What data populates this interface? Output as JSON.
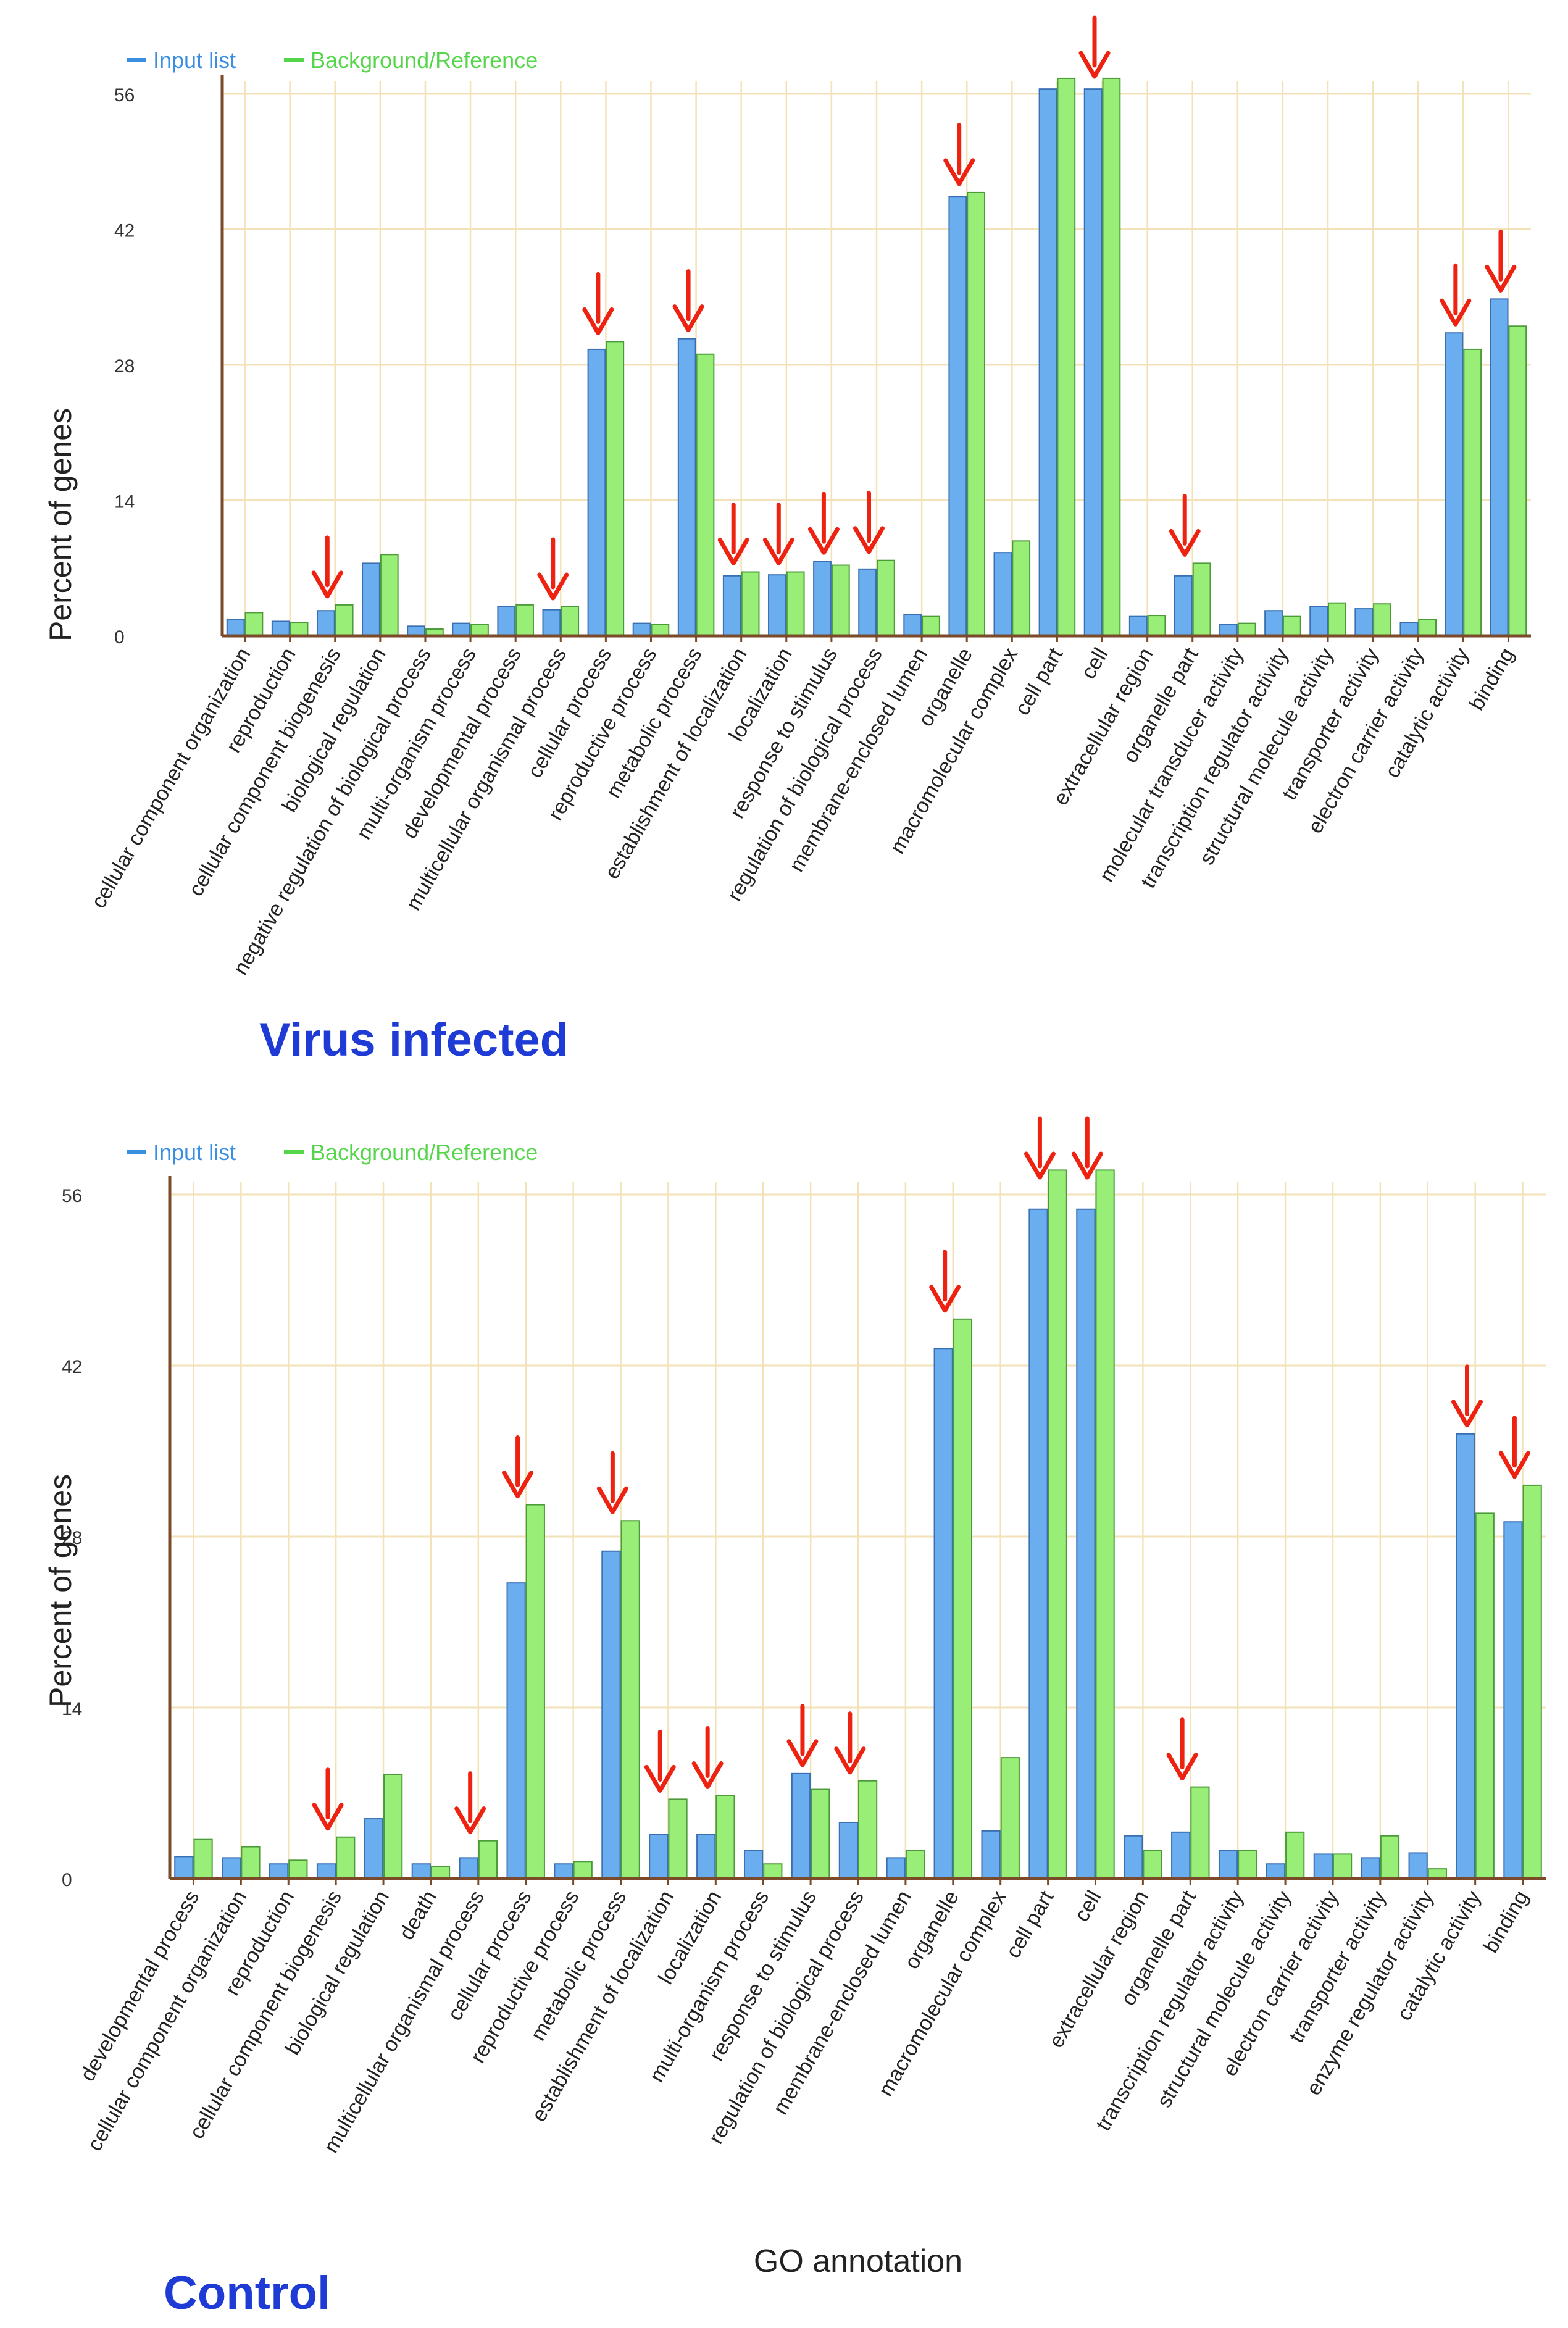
{
  "panels": [
    {
      "panel_label": "Virus infected",
      "legend": {
        "input": "Input list",
        "background": "Background/Reference"
      }
    },
    {
      "panel_label": "Control",
      "legend": {
        "input": "Input list",
        "background": "Background/Reference"
      }
    }
  ],
  "colors": {
    "input": "#6aaef0",
    "input_edge": "#3b6fb3",
    "background": "#99ee77",
    "background_edge": "#4c9a3a",
    "axis": "#7a4a2a",
    "grid": "#f3e2b8",
    "arrow": "#ee2211",
    "panel_label": "#1f3bd6",
    "legend_input": "#3b8fe0",
    "legend_background": "#55d64a"
  },
  "chart_data": [
    {
      "type": "bar",
      "title": "Virus infected",
      "ylabel": "Percent of genes",
      "xlabel": "",
      "ylim": [
        0,
        56
      ],
      "yticks": [
        0,
        14,
        28,
        42,
        56
      ],
      "legend_position": "top-left",
      "grid": true,
      "categories": [
        "cellular component organization",
        "reproduction",
        "cellular component biogenesis",
        "biological regulation",
        "negative regulation of biological process",
        "multi-organism process",
        "developmental process",
        "multicellular organismal process",
        "cellular process",
        "reproductive process",
        "metabolic process",
        "establishment of localization",
        "localization",
        "response to stimulus",
        "regulation of biological process",
        "membrane-enclosed lumen",
        "organelle",
        "macromolecular complex",
        "cell part",
        "cell",
        "extracellular region",
        "organelle part",
        "molecular transducer activity",
        "transcription regulator activity",
        "structural molecule activity",
        "transporter activity",
        "electron carrier activity",
        "catalytic activity",
        "binding"
      ],
      "series": [
        {
          "name": "Input list",
          "values": [
            1.7,
            1.5,
            2.6,
            7.5,
            1.0,
            1.3,
            3.0,
            2.7,
            29.6,
            1.3,
            30.7,
            6.2,
            6.3,
            7.7,
            6.9,
            2.2,
            45.4,
            8.6,
            56.5,
            56.5,
            2.0,
            6.2,
            1.2,
            2.6,
            3.0,
            2.8,
            1.4,
            31.3,
            34.8
          ]
        },
        {
          "name": "Background/Reference",
          "values": [
            2.4,
            1.4,
            3.2,
            8.4,
            0.7,
            1.2,
            3.2,
            3.0,
            30.4,
            1.2,
            29.1,
            6.6,
            6.6,
            7.3,
            7.8,
            2.0,
            45.8,
            9.8,
            57.6,
            57.6,
            2.1,
            7.5,
            1.3,
            2.0,
            3.4,
            3.3,
            1.7,
            29.6,
            32.0
          ]
        }
      ],
      "arrows": [
        "cellular component biogenesis",
        "multicellular organismal process",
        "cellular process",
        "metabolic process",
        "establishment of localization",
        "localization",
        "response to stimulus",
        "regulation of biological process",
        "organelle",
        "cell",
        "organelle part",
        "catalytic activity",
        "binding"
      ]
    },
    {
      "type": "bar",
      "title": "Control",
      "ylabel": "Percent of genes",
      "xlabel": "GO annotation",
      "ylim": [
        0,
        56
      ],
      "yticks": [
        0,
        14,
        28,
        42,
        56
      ],
      "legend_position": "top-left",
      "grid": true,
      "categories": [
        "developmental process",
        "cellular component organization",
        "reproduction",
        "cellular component biogenesis",
        "biological regulation",
        "death",
        "multicellular organismal process",
        "cellular process",
        "reproductive process",
        "metabolic process",
        "establishment of localization",
        "localization",
        "multi-organism process",
        "response to stimulus",
        "regulation of biological process",
        "membrane-enclosed lumen",
        "organelle",
        "macromolecular complex",
        "cell part",
        "cell",
        "extracellular region",
        "organelle part",
        "transcription regulator activity",
        "structural molecule activity",
        "electron carrier activity",
        "transporter activity",
        "enzyme regulator activity",
        "catalytic activity",
        "binding"
      ],
      "series": [
        {
          "name": "Input list",
          "values": [
            1.8,
            1.7,
            1.2,
            1.2,
            4.9,
            1.2,
            1.7,
            24.2,
            1.2,
            26.8,
            3.6,
            3.6,
            2.3,
            8.6,
            4.6,
            1.7,
            43.4,
            3.9,
            54.8,
            54.8,
            3.5,
            3.8,
            2.3,
            1.2,
            2.0,
            1.7,
            2.1,
            36.4,
            29.2
          ]
        },
        {
          "name": "Background/Reference",
          "values": [
            3.2,
            2.6,
            1.5,
            3.4,
            8.5,
            1.0,
            3.1,
            30.6,
            1.4,
            29.3,
            6.5,
            6.8,
            1.2,
            7.3,
            8.0,
            2.3,
            45.8,
            9.9,
            58.0,
            58.0,
            2.3,
            7.5,
            2.3,
            3.8,
            2.0,
            3.5,
            0.8,
            29.9,
            32.2
          ]
        }
      ],
      "arrows": [
        "cellular component biogenesis",
        "multicellular organismal process",
        "cellular process",
        "metabolic process",
        "establishment of localization",
        "localization",
        "response to stimulus",
        "regulation of biological process",
        "organelle",
        "cell part",
        "cell",
        "organelle part",
        "catalytic activity",
        "binding"
      ]
    }
  ]
}
